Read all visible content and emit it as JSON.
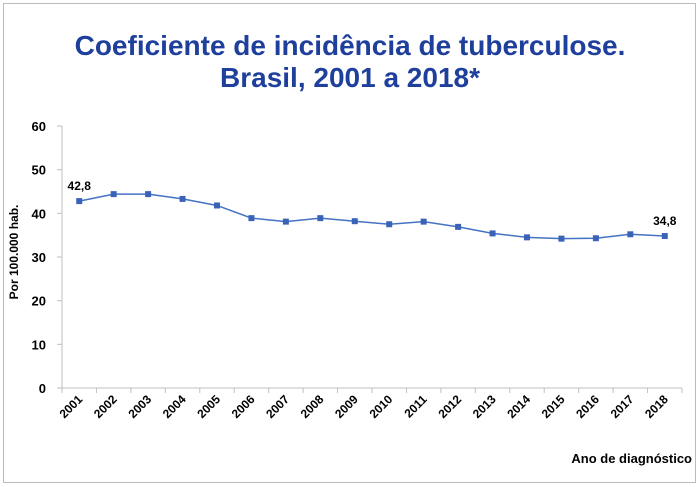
{
  "chart_data": {
    "type": "line",
    "title": "Coeficiente de incidência de tuberculose.",
    "subtitle": "Brasil, 2001 a 2018*",
    "xlabel": "Ano de diagnóstico",
    "ylabel": "Por 100.000 hab.",
    "ylim": [
      0,
      60
    ],
    "yticks": [
      "0",
      "10",
      "20",
      "30",
      "40",
      "50",
      "60"
    ],
    "grid": false,
    "categories": [
      "2001",
      "2002",
      "2003",
      "2004",
      "2005",
      "2006",
      "2007",
      "2008",
      "2009",
      "2010",
      "2011",
      "2012",
      "2013",
      "2014",
      "2015",
      "2016",
      "2017",
      "2018"
    ],
    "series": [
      {
        "values": [
          42.8,
          44.4,
          44.4,
          43.3,
          41.8,
          38.9,
          38.1,
          38.9,
          38.2,
          37.5,
          38.1,
          36.9,
          35.4,
          34.5,
          34.2,
          34.3,
          35.2,
          34.8
        ],
        "color": "#4472c4"
      }
    ],
    "data_labels": [
      {
        "index": 0,
        "text": "42,8"
      },
      {
        "index": 17,
        "text": "34,8"
      }
    ]
  },
  "colors": {
    "title": "#1f3f9c",
    "line": "#4472c4",
    "marker": "#3a63b8"
  }
}
